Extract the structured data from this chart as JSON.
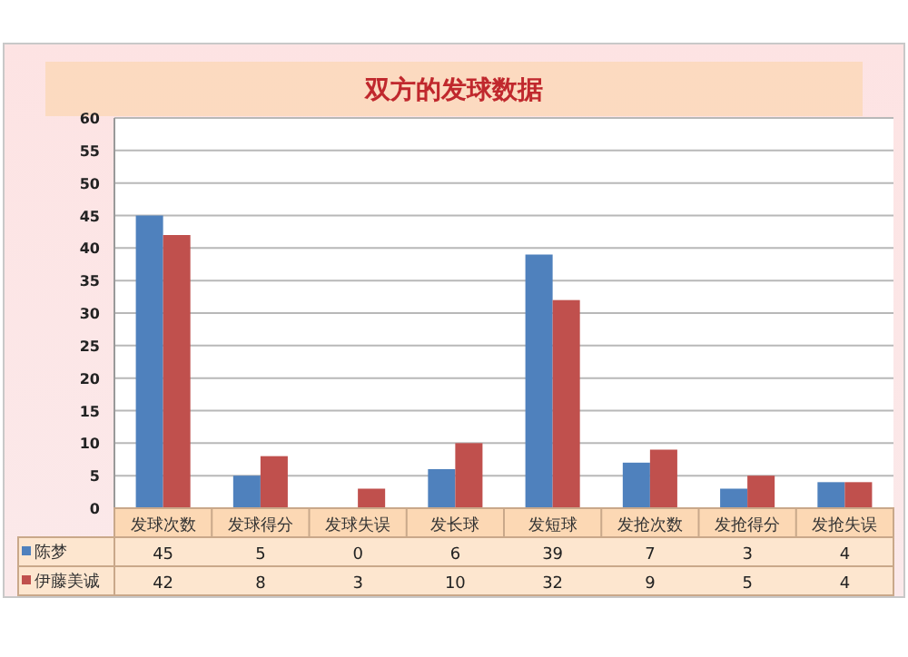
{
  "chart_data": {
    "type": "bar",
    "title": "双方的发球数据",
    "categories": [
      "发球次数",
      "发球得分",
      "发球失误",
      "发长球",
      "发短球",
      "发抢次数",
      "发抢得分",
      "发抢失误"
    ],
    "series": [
      {
        "name": "陈梦",
        "color": "#4f81bd",
        "values": [
          45,
          5,
          0,
          6,
          39,
          7,
          3,
          4
        ]
      },
      {
        "name": "伊藤美诚",
        "color": "#c0504d",
        "values": [
          42,
          8,
          3,
          10,
          32,
          9,
          5,
          4
        ]
      }
    ],
    "ylim": [
      0,
      60
    ],
    "yticks": [
      0,
      5,
      10,
      15,
      20,
      25,
      30,
      35,
      40,
      45,
      50,
      55,
      60
    ],
    "grid": "y",
    "legend": "bottom",
    "data_labels": true
  }
}
